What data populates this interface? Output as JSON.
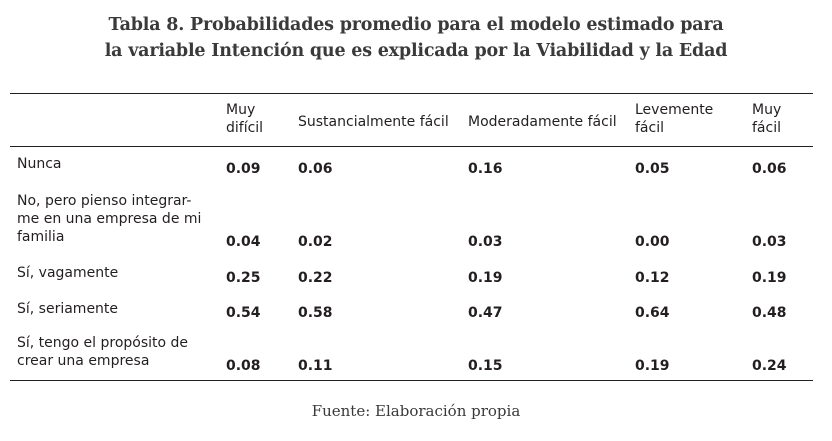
{
  "caption": {
    "line1": "Tabla 8. Probabilidades promedio para el modelo estimado para",
    "line2": "la variable Intención que es explicada por la Viabilidad y la Edad"
  },
  "columns": [
    {
      "line1": "Muy",
      "line2": "difícil"
    },
    {
      "line1": "Sustancialmente fácil",
      "line2": ""
    },
    {
      "line1": "Moderadamente fácil",
      "line2": ""
    },
    {
      "line1": "Levemente",
      "line2": "fácil"
    },
    {
      "line1": "Muy",
      "line2": "fácil"
    }
  ],
  "rows": [
    {
      "label": "Nunca",
      "values": [
        "0.09",
        "0.06",
        "0.16",
        "0.05",
        "0.06"
      ]
    },
    {
      "label": "No, pero pienso integrar- me en una empresa de mi familia",
      "values": [
        "0.04",
        "0.02",
        "0.03",
        "0.00",
        "0.03"
      ]
    },
    {
      "label": "Sí, vagamente",
      "values": [
        "0.25",
        "0.22",
        "0.19",
        "0.12",
        "0.19"
      ]
    },
    {
      "label": "Sí, seriamente",
      "values": [
        "0.54",
        "0.58",
        "0.47",
        "0.64",
        "0.48"
      ]
    },
    {
      "label": "Sí, tengo el propósito de crear una empresa",
      "values": [
        "0.08",
        "0.11",
        "0.15",
        "0.19",
        "0.24"
      ]
    }
  ],
  "source": "Fuente: Elaboración propia"
}
